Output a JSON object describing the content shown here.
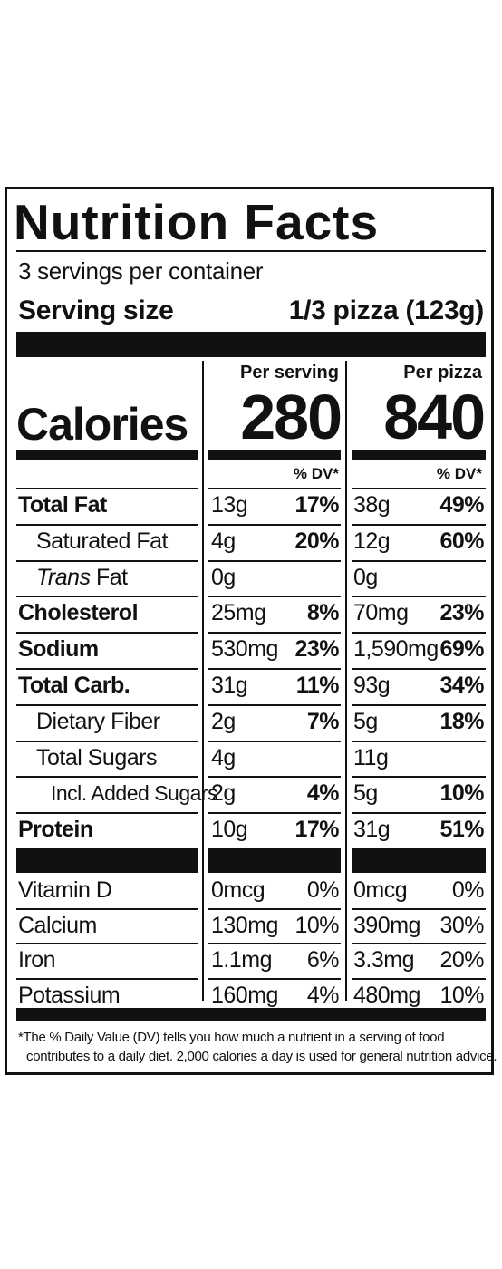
{
  "title": "Nutrition Facts",
  "servings_per_container": "3 servings per container",
  "serving_size_label": "Serving size",
  "serving_size_value": "1/3 pizza (123g)",
  "columns": {
    "col1_header": "Per serving",
    "col2_header": "Per pizza",
    "dv_label": "% DV*"
  },
  "calories": {
    "label": "Calories",
    "per_serving": "280",
    "per_pizza": "840"
  },
  "nutrients": [
    {
      "name": "Total Fat",
      "amt1": "13g",
      "dv1": "17%",
      "amt2": "38g",
      "dv2": "49%"
    },
    {
      "name": "Saturated Fat",
      "amt1": "4g",
      "dv1": "20%",
      "amt2": "12g",
      "dv2": "60%"
    },
    {
      "name_prefix": "Trans",
      "name": " Fat",
      "amt1": "0g",
      "dv1": "",
      "amt2": "0g",
      "dv2": ""
    },
    {
      "name": "Cholesterol",
      "amt1": "25mg",
      "dv1": "8%",
      "amt2": "70mg",
      "dv2": "23%"
    },
    {
      "name": "Sodium",
      "amt1": "530mg",
      "dv1": "23%",
      "amt2": "1,590mg",
      "dv2": "69%"
    },
    {
      "name": "Total Carb.",
      "amt1": "31g",
      "dv1": "11%",
      "amt2": "93g",
      "dv2": "34%"
    },
    {
      "name": "Dietary Fiber",
      "amt1": "2g",
      "dv1": "7%",
      "amt2": "5g",
      "dv2": "18%"
    },
    {
      "name": "Total Sugars",
      "amt1": "4g",
      "dv1": "",
      "amt2": "11g",
      "dv2": ""
    },
    {
      "name": "Incl. Added Sugars",
      "amt1": "2g",
      "dv1": "4%",
      "amt2": "5g",
      "dv2": "10%"
    },
    {
      "name": "Protein",
      "amt1": "10g",
      "dv1": "17%",
      "amt2": "31g",
      "dv2": "51%"
    }
  ],
  "vitamins": [
    {
      "name": "Vitamin D",
      "amt1": "0mcg",
      "dv1": "0%",
      "amt2": "0mcg",
      "dv2": "0%"
    },
    {
      "name": "Calcium",
      "amt1": "130mg",
      "dv1": "10%",
      "amt2": "390mg",
      "dv2": "30%"
    },
    {
      "name": "Iron",
      "amt1": "1.1mg",
      "dv1": "6%",
      "amt2": "3.3mg",
      "dv2": "20%"
    },
    {
      "name": "Potassium",
      "amt1": "160mg",
      "dv1": "4%",
      "amt2": "480mg",
      "dv2": "10%"
    }
  ],
  "footnote_line1": "*The % Daily Value (DV) tells you how much a nutrient in a serving of food",
  "footnote_line2": "contributes to a daily diet. 2,000 calories a day is used for general nutrition advice."
}
